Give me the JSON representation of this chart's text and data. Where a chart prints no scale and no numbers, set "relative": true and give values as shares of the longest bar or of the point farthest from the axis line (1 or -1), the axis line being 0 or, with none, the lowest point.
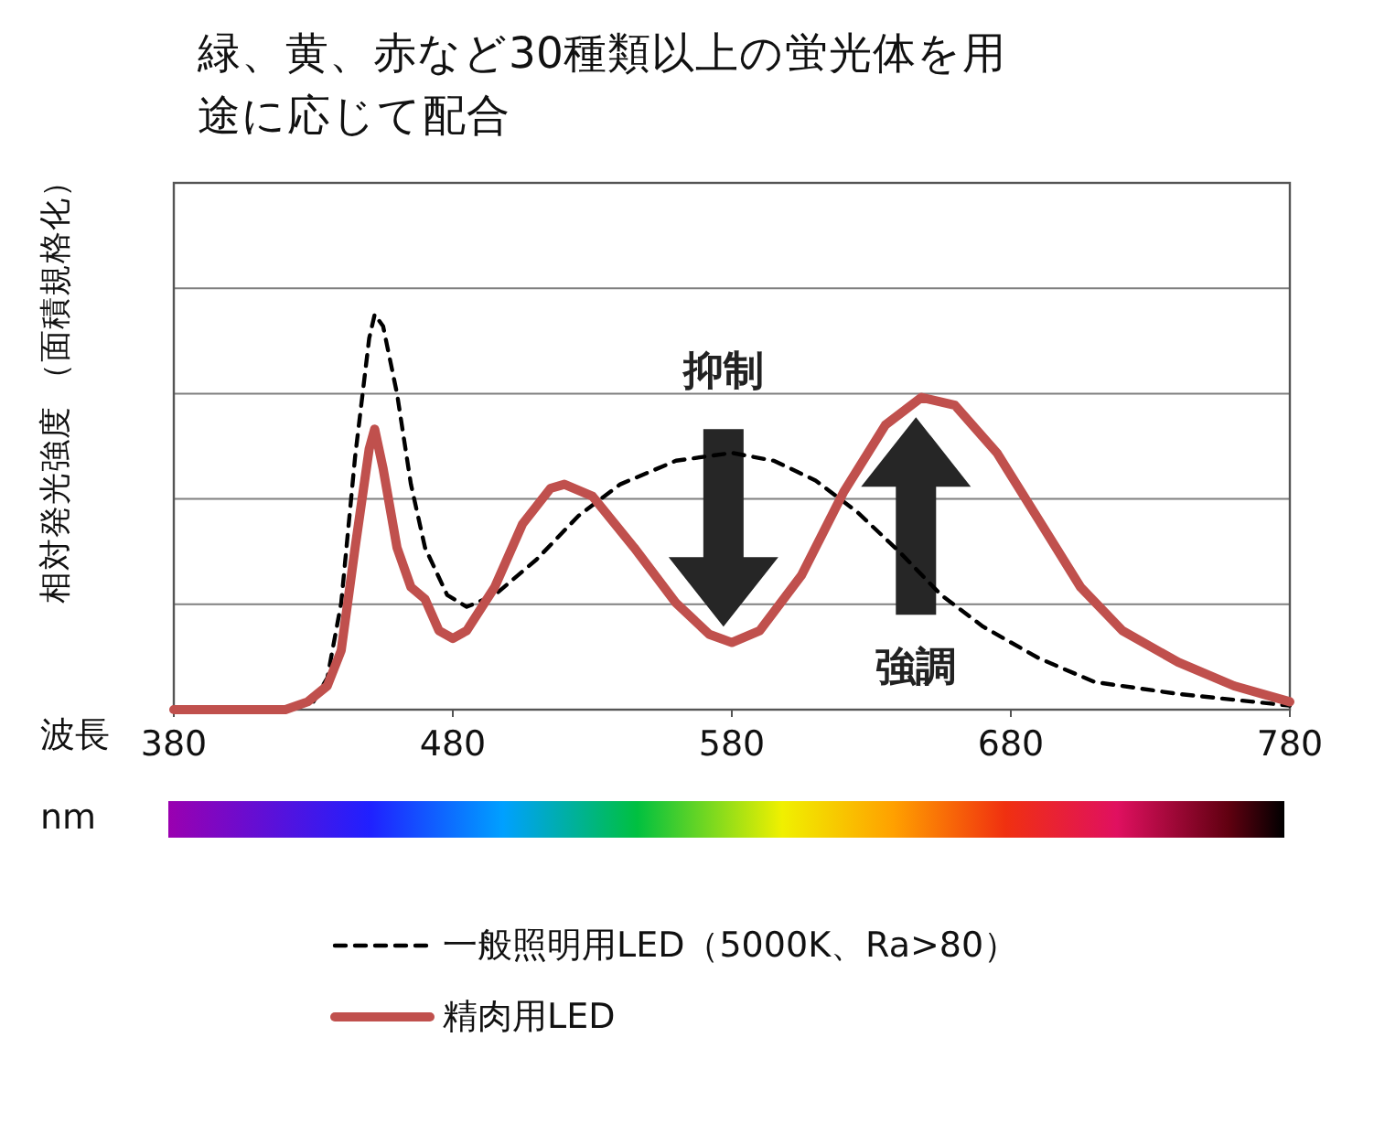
{
  "chart_data": {
    "type": "line",
    "title": "緑、黄、赤など30種類以上の蛍光体を用途に応じて配合",
    "xlabel": "波長",
    "ylabel": "相対発光強度 （面積規格化）",
    "relative": true,
    "grid": "y",
    "legend": "bottom",
    "xlim": [
      380,
      780
    ],
    "xticks": [
      380,
      480,
      580,
      680,
      780
    ],
    "annotations": [
      "抑制",
      "強調",
      "nm"
    ],
    "series": [
      {
        "name": "一般照明用LED（5000K、Ra>80）",
        "color": "#000000",
        "line_style": "dashed",
        "x": [
          380,
          420,
          430,
          435,
          440,
          445,
          450,
          452,
          455,
          460,
          465,
          470,
          478,
          485,
          495,
          510,
          525,
          540,
          560,
          580,
          595,
          610,
          625,
          640,
          655,
          670,
          690,
          710,
          740,
          780
        ],
        "values": [
          0,
          0,
          0.02,
          0.08,
          0.27,
          0.64,
          0.94,
          1.0,
          0.97,
          0.8,
          0.57,
          0.41,
          0.29,
          0.26,
          0.29,
          0.38,
          0.49,
          0.57,
          0.63,
          0.65,
          0.63,
          0.58,
          0.5,
          0.4,
          0.29,
          0.21,
          0.13,
          0.07,
          0.04,
          0.01
        ]
      },
      {
        "name": "精肉用LED",
        "color": "#c0504d",
        "line_style": "solid",
        "x": [
          380,
          420,
          428,
          435,
          440,
          445,
          450,
          452,
          455,
          460,
          465,
          470,
          475,
          480,
          485,
          495,
          505,
          515,
          520,
          530,
          545,
          560,
          572,
          580,
          590,
          605,
          620,
          635,
          648,
          660,
          675,
          690,
          705,
          720,
          740,
          760,
          780
        ],
        "values": [
          0,
          0,
          0.02,
          0.06,
          0.15,
          0.41,
          0.66,
          0.71,
          0.61,
          0.41,
          0.31,
          0.28,
          0.2,
          0.18,
          0.2,
          0.31,
          0.47,
          0.56,
          0.57,
          0.54,
          0.41,
          0.27,
          0.19,
          0.17,
          0.2,
          0.34,
          0.55,
          0.72,
          0.79,
          0.77,
          0.65,
          0.48,
          0.31,
          0.2,
          0.12,
          0.06,
          0.02
        ]
      }
    ]
  }
}
